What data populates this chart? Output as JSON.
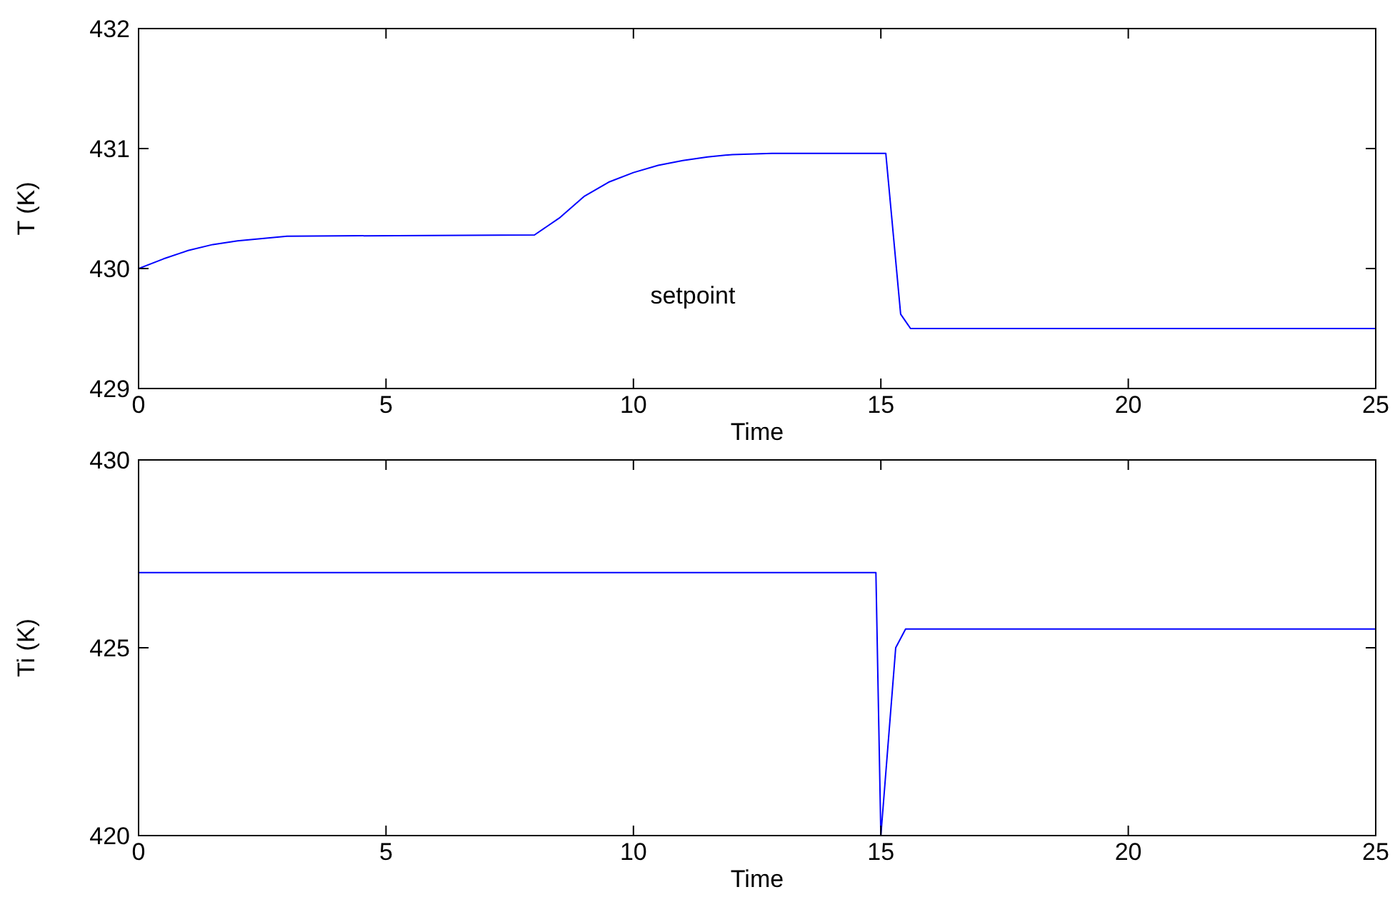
{
  "chart_data": [
    {
      "type": "line",
      "xlabel": "Time",
      "ylabel": "T (K)",
      "xlim": [
        0,
        25
      ],
      "xticks": [
        0,
        5,
        10,
        15,
        20,
        25
      ],
      "ylim": [
        429,
        432
      ],
      "yticks": [
        429,
        430,
        431,
        432
      ],
      "grid": false,
      "annotations": [
        "setpoint"
      ],
      "series": [
        {
          "color": "#0000ff",
          "x": [
            0,
            0.5,
            1,
            1.5,
            2,
            2.5,
            3,
            8,
            8.5,
            9,
            9.5,
            10,
            10.5,
            11,
            11.5,
            12,
            12.8,
            15.1,
            15.4,
            15.6,
            25
          ],
          "values": [
            430,
            430.08,
            430.15,
            430.2,
            430.23,
            430.25,
            430.27,
            430.28,
            430.42,
            430.6,
            430.72,
            430.8,
            430.86,
            430.9,
            430.93,
            430.95,
            430.96,
            430.96,
            429.62,
            429.5,
            429.5
          ]
        }
      ]
    },
    {
      "type": "line",
      "xlabel": "Time",
      "ylabel": "Ti (K)",
      "xlim": [
        0,
        25
      ],
      "xticks": [
        0,
        5,
        10,
        15,
        20,
        25
      ],
      "ylim": [
        420,
        430
      ],
      "yticks": [
        420,
        425,
        430
      ],
      "grid": false,
      "series": [
        {
          "color": "#0000ff",
          "x": [
            0,
            14.9,
            15.0,
            15.3,
            15.5,
            25
          ],
          "values": [
            427,
            427,
            420,
            425,
            425.5,
            425.5
          ]
        }
      ]
    }
  ]
}
